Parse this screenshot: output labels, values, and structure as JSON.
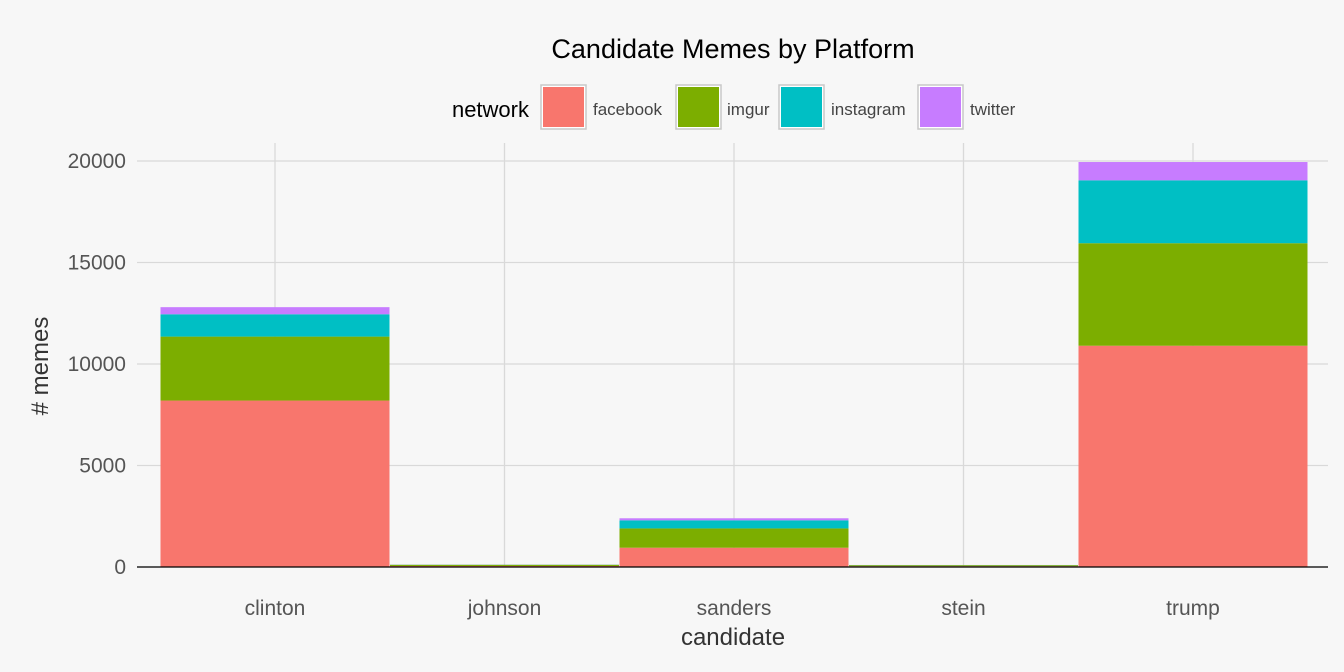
{
  "chart_data": {
    "type": "bar",
    "stacked": true,
    "title": "Candidate Memes by Platform",
    "xlabel": "candidate",
    "ylabel": "# memes",
    "ylim": [
      0,
      20500
    ],
    "yticks": [
      0,
      5000,
      10000,
      15000,
      20000
    ],
    "grid": true,
    "legend": {
      "title": "network",
      "position": "top"
    },
    "categories": [
      "clinton",
      "johnson",
      "sanders",
      "stein",
      "trump"
    ],
    "series": [
      {
        "name": "facebook",
        "color": "#F8766D",
        "values": [
          8200,
          50,
          950,
          40,
          10900
        ]
      },
      {
        "name": "imgur",
        "color": "#7CAE00",
        "values": [
          3150,
          60,
          950,
          50,
          5050
        ]
      },
      {
        "name": "instagram",
        "color": "#00BFC4",
        "values": [
          1100,
          5,
          400,
          5,
          3100
        ]
      },
      {
        "name": "twitter",
        "color": "#C77CFF",
        "values": [
          350,
          5,
          100,
          5,
          900
        ]
      }
    ]
  }
}
